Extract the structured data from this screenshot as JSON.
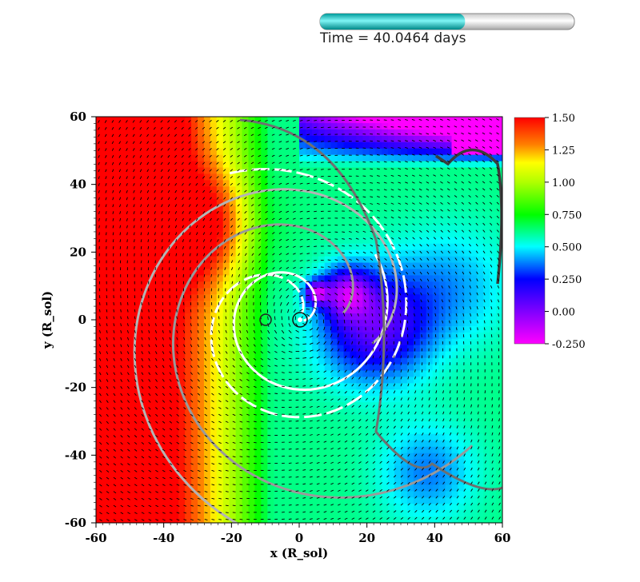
{
  "time_bar": {
    "label": "Time = 40.0464 days",
    "progress": 0.57,
    "fill_color": "#00c8c8"
  },
  "chart_data": {
    "type": "heatmap",
    "title": "",
    "xlabel": "x (R_sol)",
    "ylabel": "y (R_sol)",
    "xlim": [
      -60,
      60
    ],
    "ylim": [
      -60,
      60
    ],
    "x_ticks": [
      "-60",
      "-40",
      "-20",
      "0",
      "20",
      "40",
      "60"
    ],
    "y_ticks": [
      "60",
      "40",
      "20",
      "0",
      "-20",
      "-40",
      "-60"
    ],
    "colorbar": {
      "min": -0.25,
      "max": 1.5,
      "tick_labels": [
        "1.50",
        "1.25",
        "1.00",
        "0.750",
        "0.500",
        "0.250",
        "0.00",
        "-0.250"
      ],
      "colormap": [
        "#ff00ff",
        "#0000ff",
        "#00ffff",
        "#00ff00",
        "#ffff00",
        "#ff0000"
      ]
    },
    "overlays": [
      "velocity vector field",
      "contour lines"
    ]
  }
}
